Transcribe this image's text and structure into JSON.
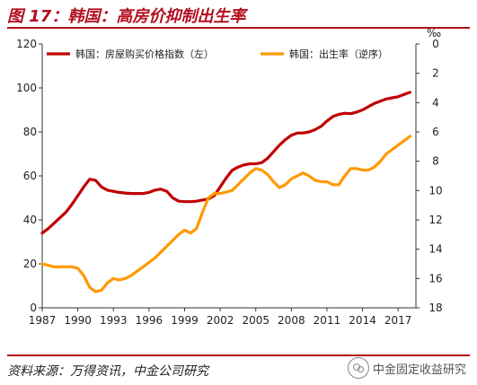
{
  "figure": {
    "title": "图 17：韩国：高房价抑制出生率",
    "source": "资料来源：万得资讯，中金公司研究",
    "watermark": "中金固定收益研究",
    "watermark_icon": "wechat-icon"
  },
  "chart_data": {
    "type": "line",
    "title": "",
    "x_ticks": [
      "1987",
      "1990",
      "1993",
      "1996",
      "1999",
      "2002",
      "2005",
      "2008",
      "2011",
      "2014",
      "2017"
    ],
    "xlim": [
      1987,
      2018.5
    ],
    "left_axis": {
      "ylim": [
        0,
        120
      ],
      "ticks": [
        "0",
        "20",
        "40",
        "60",
        "80",
        "100",
        "120"
      ]
    },
    "right_axis": {
      "ylim": [
        18,
        0
      ],
      "inverted": true,
      "unit": "‰",
      "ticks": [
        "0",
        "2",
        "4",
        "6",
        "8",
        "10",
        "12",
        "14",
        "16",
        "18"
      ]
    },
    "legend_position": "top",
    "series": [
      {
        "name": "韩国：房屋购买价格指数（左）",
        "axis": "left",
        "color": "#c00000",
        "x": [
          1987,
          1987.5,
          1988,
          1988.5,
          1989,
          1989.5,
          1990,
          1990.5,
          1991,
          1991.5,
          1992,
          1992.5,
          1993,
          1993.5,
          1994,
          1994.5,
          1995,
          1995.5,
          1996,
          1996.5,
          1997,
          1997.5,
          1998,
          1998.5,
          1999,
          1999.5,
          2000,
          2000.5,
          2001,
          2001.5,
          2002,
          2002.5,
          2003,
          2003.5,
          2004,
          2004.5,
          2005,
          2005.5,
          2006,
          2006.5,
          2007,
          2007.5,
          2008,
          2008.5,
          2009,
          2009.5,
          2010,
          2010.5,
          2011,
          2011.5,
          2012,
          2012.5,
          2013,
          2013.5,
          2014,
          2014.5,
          2015,
          2015.5,
          2016,
          2016.5,
          2017,
          2017.5,
          2018
        ],
        "values": [
          34,
          36,
          38.5,
          41,
          43.5,
          47,
          51,
          55,
          58.5,
          58,
          55,
          53.5,
          53,
          52.5,
          52.2,
          52,
          52,
          52,
          52.5,
          53.5,
          54,
          53,
          50,
          48.5,
          48.3,
          48.3,
          48.5,
          49,
          49.5,
          51,
          55,
          59,
          62.5,
          64,
          65,
          65.5,
          65.5,
          66,
          68,
          71,
          74,
          76.5,
          78.5,
          79.5,
          79.5,
          80,
          81,
          82.5,
          85,
          87,
          88,
          88.5,
          88.3,
          89,
          90,
          91.5,
          93,
          94,
          95,
          95.5,
          96,
          97,
          98
        ]
      },
      {
        "name": "韩国：出生率（逆序）",
        "axis": "right",
        "color": "#ff9900",
        "x": [
          1987,
          1987.5,
          1988,
          1988.5,
          1989,
          1989.5,
          1990,
          1990.5,
          1991,
          1991.5,
          1992,
          1992.5,
          1993,
          1993.5,
          1994,
          1994.5,
          1995,
          1995.5,
          1996,
          1996.5,
          1997,
          1997.5,
          1998,
          1998.5,
          1999,
          1999.5,
          2000,
          2000.5,
          2001,
          2001.5,
          2002,
          2002.5,
          2003,
          2003.5,
          2004,
          2004.5,
          2005,
          2005.5,
          2006,
          2006.5,
          2007,
          2007.5,
          2008,
          2008.5,
          2009,
          2009.5,
          2010,
          2010.5,
          2011,
          2011.5,
          2012,
          2012.5,
          2013,
          2013.5,
          2014,
          2014.5,
          2015,
          2015.5,
          2016,
          2016.5,
          2017,
          2017.5,
          2018
        ],
        "values": [
          15,
          15.1,
          15.2,
          15.2,
          15.2,
          15.2,
          15.3,
          15.8,
          16.6,
          16.9,
          16.8,
          16.3,
          16,
          16.1,
          16,
          15.8,
          15.5,
          15.2,
          14.9,
          14.6,
          14.2,
          13.8,
          13.4,
          13,
          12.7,
          12.9,
          12.6,
          11.5,
          10.5,
          10.2,
          10.2,
          10.1,
          10,
          9.6,
          9.2,
          8.8,
          8.5,
          8.6,
          8.9,
          9.4,
          9.8,
          9.6,
          9.2,
          9,
          8.8,
          9,
          9.3,
          9.4,
          9.4,
          9.6,
          9.6,
          9,
          8.5,
          8.5,
          8.6,
          8.6,
          8.4,
          8,
          7.5,
          7.2,
          6.9,
          6.6,
          6.3
        ]
      }
    ]
  }
}
